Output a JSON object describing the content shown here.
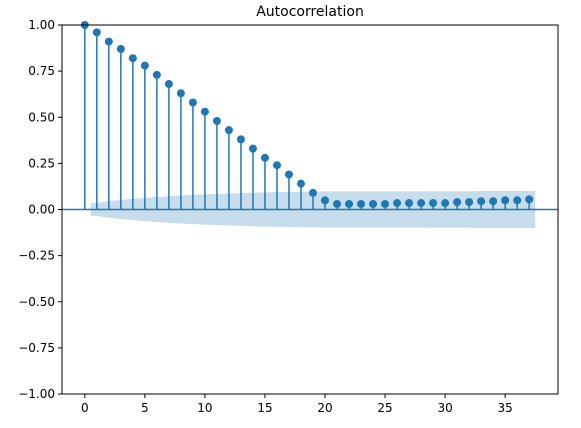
{
  "chart_data": {
    "type": "stem",
    "title": "Autocorrelation",
    "x": [
      0,
      1,
      2,
      3,
      4,
      5,
      6,
      7,
      8,
      9,
      10,
      11,
      12,
      13,
      14,
      15,
      16,
      17,
      18,
      19,
      20,
      21,
      22,
      23,
      24,
      25,
      26,
      27,
      28,
      29,
      30,
      31,
      32,
      33,
      34,
      35,
      36,
      37
    ],
    "values": [
      1.0,
      0.96,
      0.91,
      0.87,
      0.82,
      0.78,
      0.73,
      0.68,
      0.63,
      0.58,
      0.53,
      0.48,
      0.43,
      0.38,
      0.33,
      0.28,
      0.24,
      0.19,
      0.14,
      0.09,
      0.05,
      0.03,
      0.03,
      0.03,
      0.03,
      0.03,
      0.035,
      0.035,
      0.035,
      0.035,
      0.035,
      0.04,
      0.04,
      0.045,
      0.045,
      0.05,
      0.05,
      0.055
    ],
    "confidence_band": [
      0.035,
      0.045,
      0.052,
      0.058,
      0.063,
      0.068,
      0.072,
      0.076,
      0.079,
      0.082,
      0.085,
      0.087,
      0.089,
      0.091,
      0.093,
      0.094,
      0.095,
      0.096,
      0.097,
      0.098,
      0.098,
      0.098,
      0.098,
      0.098,
      0.098,
      0.098,
      0.098,
      0.098,
      0.099,
      0.099,
      0.099,
      0.099,
      0.1,
      0.1,
      0.1,
      0.1,
      0.1
    ],
    "color": "#1f77b4",
    "xlim": [
      -1.9,
      39.4
    ],
    "xticks": [
      0,
      5,
      10,
      15,
      20,
      25,
      30,
      35
    ],
    "ylim": [
      -1.0,
      1.0
    ],
    "yticks": [
      {
        "value": -1.0,
        "label": "−1.00"
      },
      {
        "value": -0.75,
        "label": "−0.75"
      },
      {
        "value": -0.5,
        "label": "−0.50"
      },
      {
        "value": -0.25,
        "label": "−0.25"
      },
      {
        "value": 0,
        "label": "0.00"
      },
      {
        "value": 0.25,
        "label": "0.25"
      },
      {
        "value": 0.5,
        "label": "0.50"
      },
      {
        "value": 0.75,
        "label": "0.75"
      },
      {
        "value": 1.0,
        "label": "1.00"
      }
    ]
  }
}
